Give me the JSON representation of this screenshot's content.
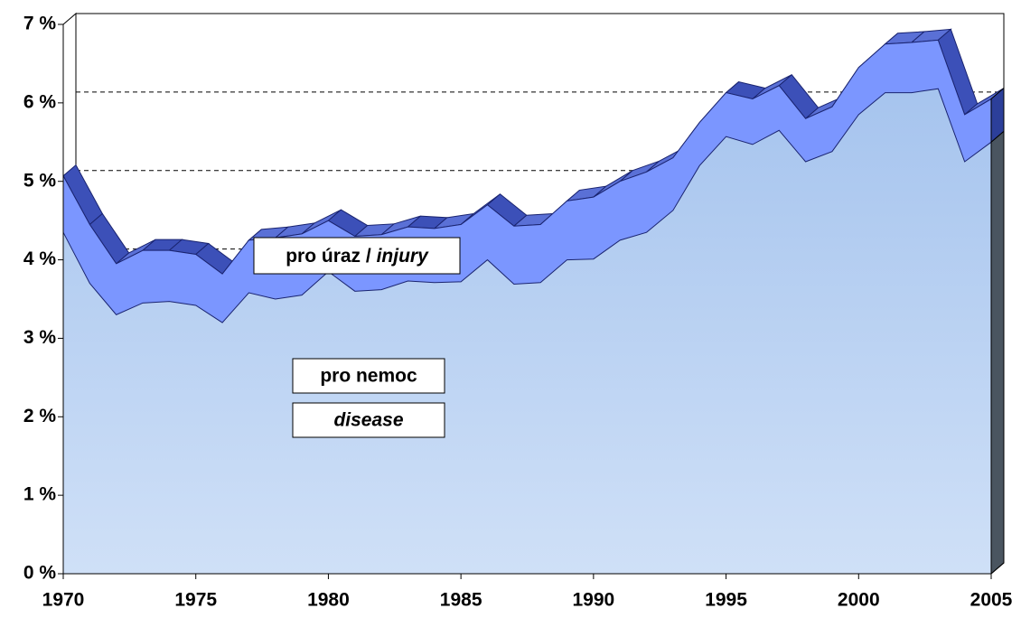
{
  "chart_data": {
    "type": "area",
    "x": [
      1970,
      1971,
      1972,
      1973,
      1974,
      1975,
      1976,
      1977,
      1978,
      1979,
      1980,
      1981,
      1982,
      1983,
      1984,
      1985,
      1986,
      1987,
      1988,
      1989,
      1990,
      1991,
      1992,
      1993,
      1994,
      1995,
      1996,
      1997,
      1998,
      1999,
      2000,
      2001,
      2002,
      2003,
      2004,
      2005
    ],
    "series": [
      {
        "name": "pro nemoc",
        "color": "#b4cdef",
        "values": [
          4.35,
          3.7,
          3.3,
          3.45,
          3.47,
          3.42,
          3.2,
          3.58,
          3.5,
          3.55,
          3.85,
          3.6,
          3.62,
          3.73,
          3.71,
          3.72,
          4.0,
          3.69,
          3.71,
          4.0,
          4.01,
          4.25,
          4.35,
          4.63,
          5.2,
          5.57,
          5.47,
          5.65,
          5.25,
          5.38,
          5.85,
          6.13,
          6.13,
          6.18,
          5.25,
          5.5
        ]
      },
      {
        "name": "pro úraz /",
        "color": "#7b96ff",
        "values": [
          0.72,
          0.75,
          0.65,
          0.67,
          0.65,
          0.65,
          0.62,
          0.67,
          0.78,
          0.78,
          0.65,
          0.7,
          0.7,
          0.69,
          0.69,
          0.73,
          0.7,
          0.74,
          0.74,
          0.75,
          0.79,
          0.75,
          0.77,
          0.67,
          0.55,
          0.56,
          0.58,
          0.57,
          0.55,
          0.57,
          0.6,
          0.62,
          0.64,
          0.62,
          0.6,
          0.55
        ]
      }
    ],
    "annotations": [
      "disease",
      "injury"
    ],
    "stacked": true,
    "xlim": [
      1970,
      2005
    ],
    "xticks": [
      1970,
      1975,
      1980,
      1985,
      1990,
      1995,
      2000,
      2005
    ],
    "ylim": [
      0,
      7
    ],
    "yticks": [
      {
        "value": 0,
        "label": "0 %"
      },
      {
        "value": 1,
        "label": "1 %"
      },
      {
        "value": 2,
        "label": "2 %"
      },
      {
        "value": 3,
        "label": "3 %"
      },
      {
        "value": 4,
        "label": "4 %"
      },
      {
        "value": 5,
        "label": "5 %"
      },
      {
        "value": 6,
        "label": "6 %"
      },
      {
        "value": 7,
        "label": "7 %"
      }
    ],
    "grid": true
  }
}
